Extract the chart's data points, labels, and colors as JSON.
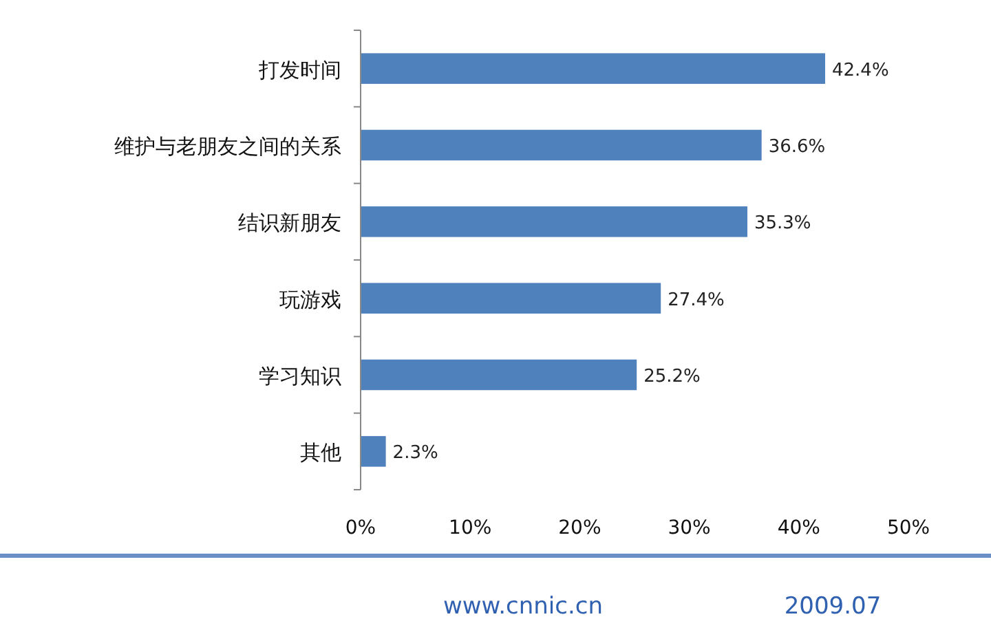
{
  "chart_data": {
    "type": "bar",
    "orientation": "horizontal",
    "categories": [
      "打发时间",
      "维护与老朋友之间的关系",
      "结识新朋友",
      "玩游戏",
      "学习知识",
      "其他"
    ],
    "values": [
      42.4,
      36.6,
      35.3,
      27.4,
      25.2,
      2.3
    ],
    "value_labels": [
      "42.4%",
      "36.6%",
      "35.3%",
      "27.4%",
      "25.2%",
      "2.3%"
    ],
    "color": "#4f81bd",
    "xlim": [
      0,
      50
    ],
    "xticks": [
      {
        "value": 0,
        "label": "0%"
      },
      {
        "value": 10,
        "label": "10%"
      },
      {
        "value": 20,
        "label": "20%"
      },
      {
        "value": 30,
        "label": "30%"
      },
      {
        "value": 40,
        "label": "40%"
      },
      {
        "value": 50,
        "label": "50%"
      }
    ],
    "grid": false,
    "annotations": [
      "www.cnnic.cn",
      "2009.07"
    ]
  }
}
